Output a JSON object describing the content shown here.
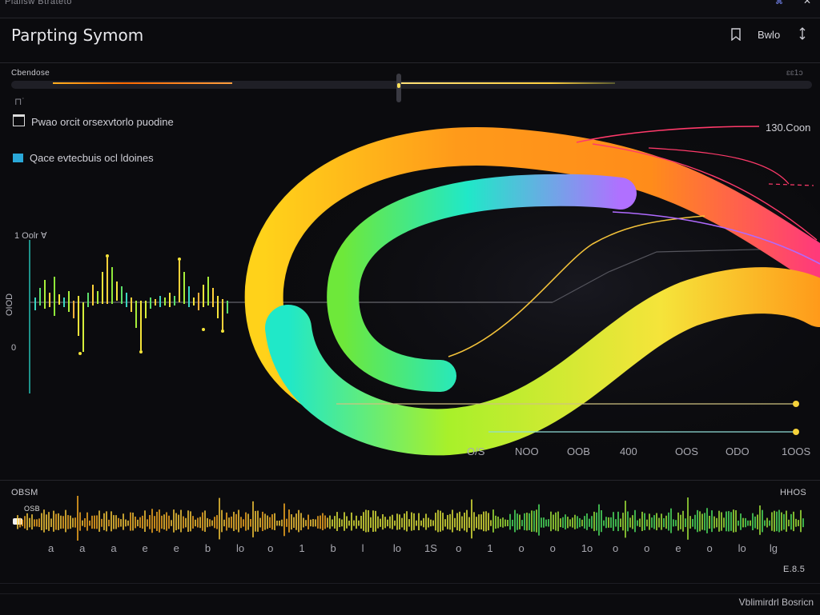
{
  "window": {
    "strip_text": "Plaiisw Btrateto",
    "strip_badge": "⌘",
    "strip_right": "✕"
  },
  "header": {
    "title": "Parpting Symom",
    "button_label": "Bwlo"
  },
  "controls": {
    "slider_label": "Cbendose",
    "slider_right_label": "ɛɛ1ɔ",
    "legend": [
      {
        "label": "Pwao orcit orsexvtorlo puodine",
        "color": "#e8e8e8"
      },
      {
        "label": "Qace evtecbuis ocl ldoines",
        "color": "#2aa8d8"
      }
    ]
  },
  "main_chart": {
    "y_axis_top": "1 Oolr ∀",
    "y_axis_mid": "OIOD",
    "y_axis_low": "0",
    "right_annotation": "130.Coon",
    "x_ticks": [
      "O/S",
      "NOO",
      "OOB",
      "400",
      "OOS",
      "ODO",
      "1OOS"
    ]
  },
  "bottom_chart": {
    "left_label": "OBSM",
    "right_label": "HHOS",
    "inner_label": "OSB",
    "x_ticks": [
      "a",
      "a",
      "a",
      "e",
      "e",
      "b",
      "lo",
      "o",
      "1",
      "b",
      "l",
      "lo",
      "1S",
      "o",
      "1",
      "o",
      "o",
      "1o",
      "o",
      "o",
      "e",
      "o",
      "lo",
      "lg"
    ],
    "corner_value": "E.8.5"
  },
  "footer": {
    "text": "Vblimirdrl Bosricn"
  },
  "colors": {
    "background": "#0b0b0e",
    "accent_orange": "#ff9a1a",
    "accent_yellow": "#f5e43a",
    "accent_green": "#7ee83a",
    "accent_cyan": "#20e8c8",
    "accent_violet": "#b070ff",
    "accent_red": "#ff3a5a"
  }
}
